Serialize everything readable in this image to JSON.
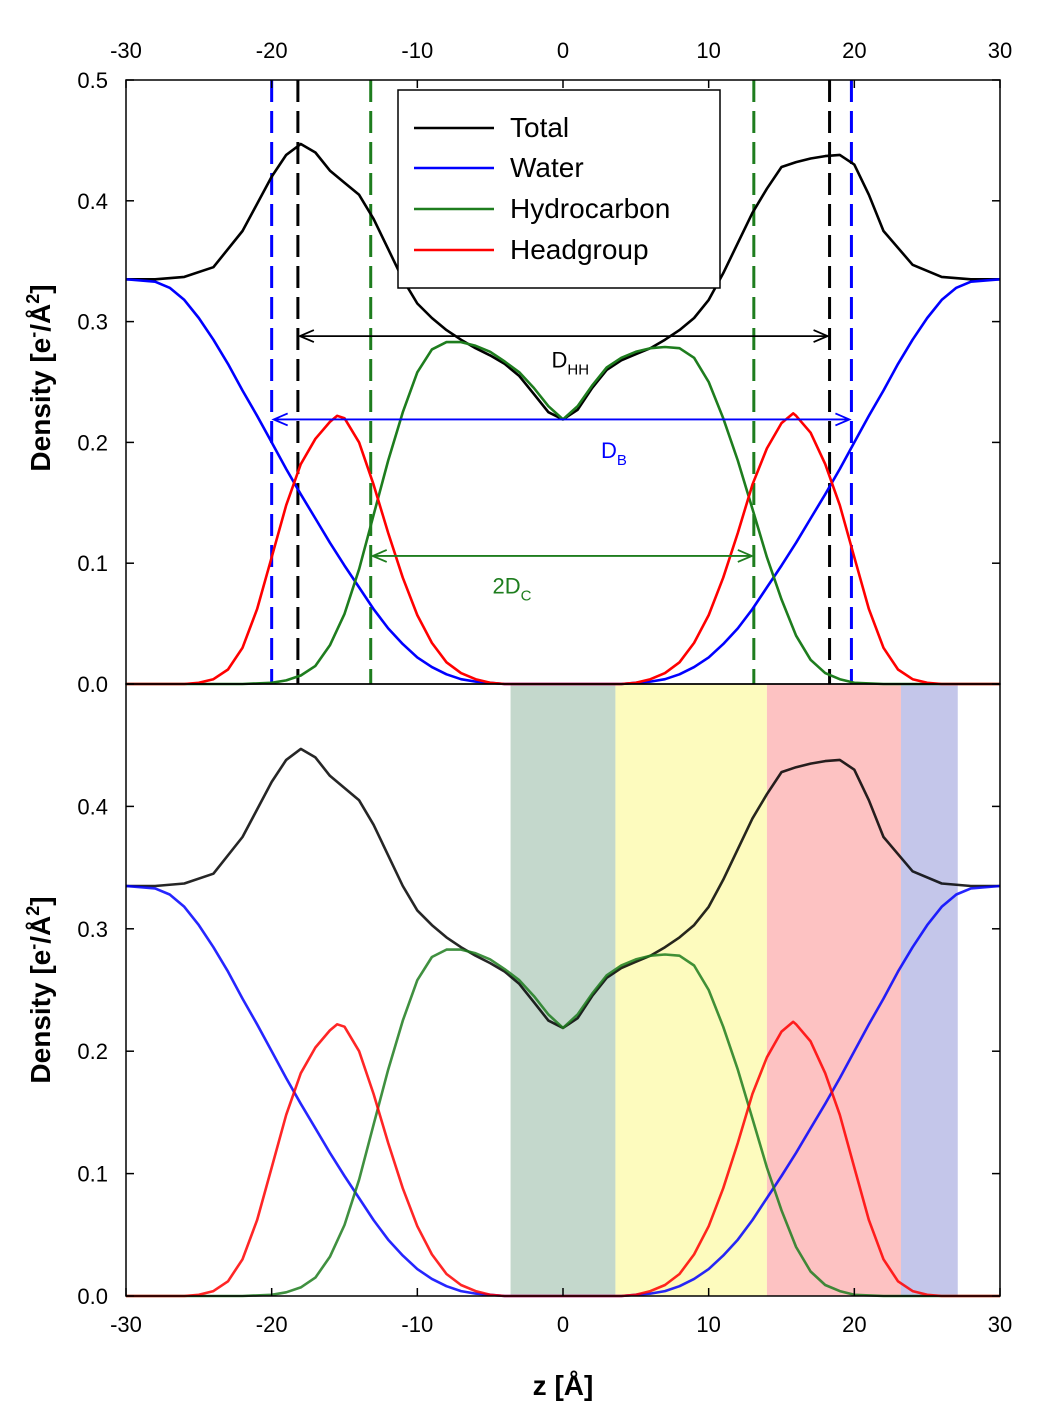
{
  "colors": {
    "total": "#000000",
    "water": "#0000ff",
    "hydrocarbon": "#1e7d1e",
    "headgroup": "#ff0000",
    "band_hydrocarbon": "#c4d8cc",
    "band_carbonyl": "#fdfbbe",
    "band_headgroup": "#fdc2c2",
    "band_water": "#c4c6ea"
  },
  "chart_data": [
    {
      "type": "line",
      "name": "top",
      "xlim": [
        -30,
        30
      ],
      "ylim": [
        0,
        0.5
      ],
      "top_axis_ticks": [
        "-30",
        "-20",
        "-10",
        "0",
        "10",
        "20",
        "30"
      ],
      "x_ticks": [
        -30,
        -20,
        -10,
        0,
        10,
        20,
        30
      ],
      "y_tick_labels": [
        "0.0",
        "0.1",
        "0.2",
        "0.3",
        "0.4",
        "0.5"
      ],
      "y_ticks": [
        0,
        0.1,
        0.2,
        0.3,
        0.4,
        0.5
      ],
      "ylabel_prefix": "Density [e",
      "ylabel_sup1": "-",
      "ylabel_mid": "/Å",
      "ylabel_sup2": "2",
      "ylabel_suffix": "]",
      "legend": {
        "placement": "top-center",
        "entries": [
          "Total",
          "Water",
          "Hydrocarbon",
          "Headgroup"
        ]
      },
      "series": [
        {
          "name": "Total",
          "x": [
            -30,
            -28,
            -26,
            -24,
            -22,
            -20,
            -19,
            -18,
            -17,
            -16,
            -15,
            -14,
            -13,
            -12,
            -11,
            -10,
            -9,
            -8,
            -7,
            -6,
            -5,
            -4,
            -3,
            -2,
            -1,
            0,
            1,
            2,
            3,
            4,
            5,
            6,
            7,
            8,
            9,
            10,
            11,
            12,
            13,
            14,
            15,
            16,
            17,
            18,
            19,
            20,
            21,
            22,
            24,
            26,
            28,
            30
          ],
          "y": [
            0.335,
            0.335,
            0.337,
            0.345,
            0.375,
            0.42,
            0.438,
            0.447,
            0.44,
            0.425,
            0.415,
            0.405,
            0.385,
            0.36,
            0.335,
            0.315,
            0.303,
            0.293,
            0.285,
            0.278,
            0.272,
            0.265,
            0.255,
            0.24,
            0.225,
            0.219,
            0.227,
            0.245,
            0.26,
            0.268,
            0.273,
            0.278,
            0.285,
            0.293,
            0.303,
            0.318,
            0.34,
            0.365,
            0.39,
            0.41,
            0.428,
            0.432,
            0.435,
            0.437,
            0.438,
            0.43,
            0.405,
            0.375,
            0.347,
            0.337,
            0.335,
            0.335
          ]
        },
        {
          "name": "Water",
          "x": [
            -30,
            -28,
            -27,
            -26,
            -25,
            -24,
            -23,
            -22,
            -21,
            -20,
            -19,
            -18,
            -17,
            -16,
            -15,
            -14,
            -13,
            -12,
            -11,
            -10,
            -9,
            -8,
            -7,
            -6,
            -5,
            -4,
            -3,
            3,
            4,
            5,
            6,
            7,
            8,
            9,
            10,
            11,
            12,
            13,
            14,
            15,
            16,
            17,
            18,
            19,
            20,
            21,
            22,
            23,
            24,
            25,
            26,
            27,
            28,
            30
          ],
          "y": [
            0.335,
            0.333,
            0.328,
            0.318,
            0.303,
            0.285,
            0.265,
            0.243,
            0.222,
            0.2,
            0.178,
            0.157,
            0.137,
            0.117,
            0.098,
            0.08,
            0.062,
            0.046,
            0.033,
            0.022,
            0.014,
            0.008,
            0.004,
            0.002,
            0.001,
            0.0,
            0.0,
            0.0,
            0.0,
            0.001,
            0.002,
            0.004,
            0.008,
            0.014,
            0.022,
            0.033,
            0.046,
            0.062,
            0.08,
            0.098,
            0.117,
            0.137,
            0.157,
            0.178,
            0.2,
            0.222,
            0.243,
            0.265,
            0.285,
            0.303,
            0.318,
            0.328,
            0.333,
            0.335
          ]
        },
        {
          "name": "Hydrocarbon",
          "x": [
            -30,
            -22,
            -20,
            -19,
            -18,
            -17,
            -16,
            -15,
            -14,
            -13,
            -12,
            -11,
            -10,
            -9,
            -8,
            -7,
            -6,
            -5,
            -4,
            -3,
            -2,
            -1,
            0,
            1,
            2,
            3,
            4,
            5,
            6,
            7,
            8,
            9,
            10,
            11,
            12,
            13,
            14,
            15,
            16,
            17,
            18,
            19,
            20,
            22,
            30
          ],
          "y": [
            0.0,
            0.0,
            0.001,
            0.003,
            0.007,
            0.015,
            0.032,
            0.058,
            0.095,
            0.14,
            0.185,
            0.225,
            0.258,
            0.277,
            0.283,
            0.283,
            0.28,
            0.275,
            0.267,
            0.258,
            0.245,
            0.23,
            0.219,
            0.23,
            0.247,
            0.262,
            0.27,
            0.275,
            0.278,
            0.279,
            0.278,
            0.27,
            0.25,
            0.22,
            0.185,
            0.145,
            0.105,
            0.07,
            0.04,
            0.02,
            0.009,
            0.004,
            0.001,
            0.0,
            0.0
          ]
        },
        {
          "name": "Headgroup",
          "x": [
            -30,
            -26,
            -25,
            -24,
            -23,
            -22,
            -21,
            -20,
            -19,
            -18,
            -17,
            -16,
            -15.5,
            -15,
            -14,
            -13,
            -12,
            -11,
            -10,
            -9,
            -8,
            -7,
            -6,
            -5,
            -4,
            4,
            5,
            6,
            7,
            8,
            9,
            10,
            11,
            12,
            13,
            14,
            15,
            15.8,
            16,
            17,
            18,
            19,
            20,
            21,
            22,
            23,
            24,
            25,
            26,
            30
          ],
          "y": [
            0.0,
            0.0,
            0.001,
            0.004,
            0.012,
            0.03,
            0.062,
            0.105,
            0.148,
            0.182,
            0.203,
            0.217,
            0.222,
            0.22,
            0.2,
            0.165,
            0.125,
            0.088,
            0.057,
            0.034,
            0.018,
            0.009,
            0.004,
            0.001,
            0.0,
            0.0,
            0.001,
            0.004,
            0.009,
            0.018,
            0.034,
            0.057,
            0.088,
            0.125,
            0.165,
            0.195,
            0.216,
            0.224,
            0.222,
            0.208,
            0.182,
            0.148,
            0.105,
            0.062,
            0.03,
            0.012,
            0.004,
            0.001,
            0.0,
            0.0
          ]
        }
      ],
      "vertical_lines": [
        {
          "x": -20,
          "series": "water",
          "style": "dashed"
        },
        {
          "x": -18.2,
          "series": "total",
          "style": "dashed"
        },
        {
          "x": -13.2,
          "series": "hydrocarbon",
          "style": "dashed"
        },
        {
          "x": 13.1,
          "series": "hydrocarbon",
          "style": "dashed"
        },
        {
          "x": 18.3,
          "series": "total",
          "style": "dashed"
        },
        {
          "x": 19.8,
          "series": "water",
          "style": "dashed"
        }
      ],
      "annotations": [
        {
          "label_main": "D",
          "label_sub": "HH",
          "series": "total",
          "x1": -18.2,
          "x2": 18.3,
          "y": 0.288,
          "label_x": 0.5,
          "label_y": 0.262
        },
        {
          "label_main": "D",
          "label_sub": "B",
          "series": "water",
          "x1": -20,
          "x2": 19.8,
          "y": 0.219,
          "label_x": 3.5,
          "label_y": 0.187
        },
        {
          "label_main": "2D",
          "label_sub": "C",
          "series": "hydrocarbon",
          "x1": -13.2,
          "x2": 13.1,
          "y": 0.106,
          "label_x": -3.5,
          "label_y": 0.075
        }
      ]
    },
    {
      "type": "line",
      "name": "bottom",
      "xlim": [
        -30,
        30
      ],
      "ylim": [
        0,
        0.5
      ],
      "x_tick_labels": [
        "-30",
        "-20",
        "-10",
        "0",
        "10",
        "20",
        "30"
      ],
      "x_ticks": [
        -30,
        -20,
        -10,
        0,
        10,
        20,
        30
      ],
      "y_tick_labels": [
        "0.0",
        "0.1",
        "0.2",
        "0.3",
        "0.4",
        ""
      ],
      "y_ticks": [
        0,
        0.1,
        0.2,
        0.3,
        0.4,
        0.5
      ],
      "xlabel": "z [Å]",
      "ylabel_prefix": "Density [e",
      "ylabel_sup1": "-",
      "ylabel_mid": "/Å",
      "ylabel_sup2": "2",
      "ylabel_suffix": "]",
      "bands": [
        {
          "x1": -3.6,
          "x2": 3.6,
          "color": "band_hydrocarbon"
        },
        {
          "x1": 3.6,
          "x2": 14,
          "color": "band_carbonyl"
        },
        {
          "x1": 14,
          "x2": 23.2,
          "color": "band_headgroup"
        },
        {
          "x1": 23.2,
          "x2": 27.1,
          "color": "band_water"
        }
      ],
      "series_ref": "same as top panel"
    }
  ]
}
